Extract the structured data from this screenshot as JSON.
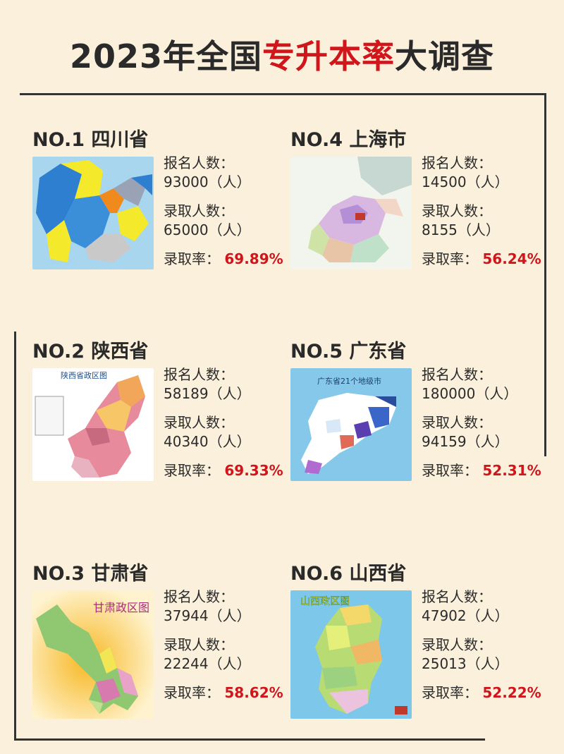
{
  "title": {
    "year": "2023年全国",
    "highlight": "专升本率",
    "suffix": "大调查"
  },
  "labels": {
    "applicants": "报名人数：",
    "admitted": "录取人数：",
    "rate": "录取率："
  },
  "colors": {
    "accent": "#d0151b",
    "background": "#fbf0dc"
  },
  "cards": [
    {
      "rank": "NO.1",
      "region": "四川省",
      "applicants": "93000（人）",
      "admitted": "65000（人）",
      "rate": "69.89%",
      "map_title": "",
      "map_icon": "sichuan-map"
    },
    {
      "rank": "NO.2",
      "region": "陕西省",
      "applicants": "58189（人）",
      "admitted": "40340（人）",
      "rate": "69.33%",
      "map_title": "陕西省政区图",
      "map_icon": "shaanxi-map"
    },
    {
      "rank": "NO.3",
      "region": "甘肃省",
      "applicants": "37944（人）",
      "admitted": "22244（人）",
      "rate": "58.62%",
      "map_title": "甘肃政区图",
      "map_icon": "gansu-map"
    },
    {
      "rank": "NO.4",
      "region": "上海市",
      "applicants": "14500（人）",
      "admitted": "8155（人）",
      "rate": "56.24%",
      "map_title": "",
      "map_icon": "shanghai-map"
    },
    {
      "rank": "NO.5",
      "region": "广东省",
      "applicants": "180000（人）",
      "admitted": "94159（人）",
      "rate": "52.31%",
      "map_title": "广东省21个地级市",
      "map_icon": "guangdong-map"
    },
    {
      "rank": "NO.6",
      "region": "山西省",
      "applicants": "47902（人）",
      "admitted": "25013（人）",
      "rate": "52.22%",
      "map_title": "山西政区图",
      "map_icon": "shanxi-map"
    }
  ]
}
